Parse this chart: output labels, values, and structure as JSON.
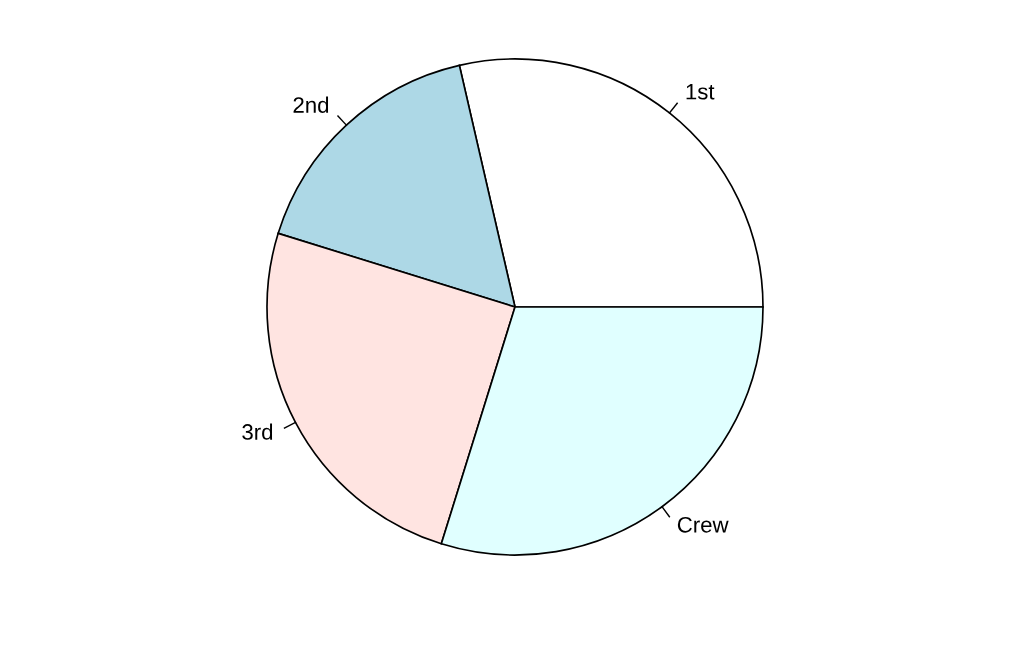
{
  "chart_data": {
    "type": "pie",
    "categories": [
      "1st",
      "2nd",
      "3rd",
      "Crew"
    ],
    "values": [
      28.6,
      16.6,
      25.0,
      29.8
    ],
    "colors": [
      "#ffffff",
      "#add8e6",
      "#ffe4e1",
      "#e0ffff"
    ]
  }
}
